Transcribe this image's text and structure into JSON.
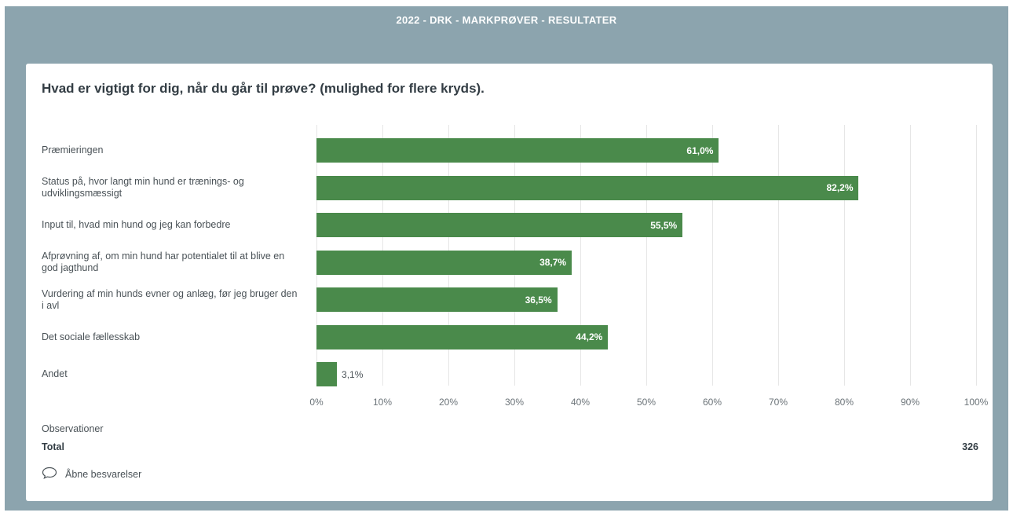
{
  "header": {
    "title": "2022 - DRK - MARKPRØVER - RESULTATER"
  },
  "question": {
    "title": "Hvad er vigtigt for dig, når du går til prøve? (mulighed for flere kryds)."
  },
  "chart_data": {
    "type": "bar",
    "orientation": "horizontal",
    "categories": [
      "Præmieringen",
      "Status på, hvor langt min hund er trænings- og udviklingsmæssigt",
      "Input til, hvad min hund og jeg kan forbedre",
      "Afprøvning af, om min hund har potentialet til at blive en god jagthund",
      "Vurdering af min hunds evner og anlæg, før jeg bruger den i avl",
      "Det sociale fællesskab",
      "Andet"
    ],
    "values": [
      61.0,
      82.2,
      55.5,
      38.7,
      36.5,
      44.2,
      3.1
    ],
    "value_labels": [
      "61,0%",
      "82,2%",
      "55,5%",
      "38,7%",
      "36,5%",
      "44,2%",
      "3,1%"
    ],
    "xlim": [
      0,
      100
    ],
    "ticks": [
      "0%",
      "10%",
      "20%",
      "30%",
      "40%",
      "50%",
      "60%",
      "70%",
      "80%",
      "90%",
      "100%"
    ],
    "bar_color": "#4a8a4b",
    "grid": true
  },
  "footer": {
    "observations_label": "Observationer",
    "total_label": "Total",
    "total_value": "326",
    "open_responses_label": "Åbne besvarelser",
    "open_responses_icon": "speech-bubble-icon"
  }
}
